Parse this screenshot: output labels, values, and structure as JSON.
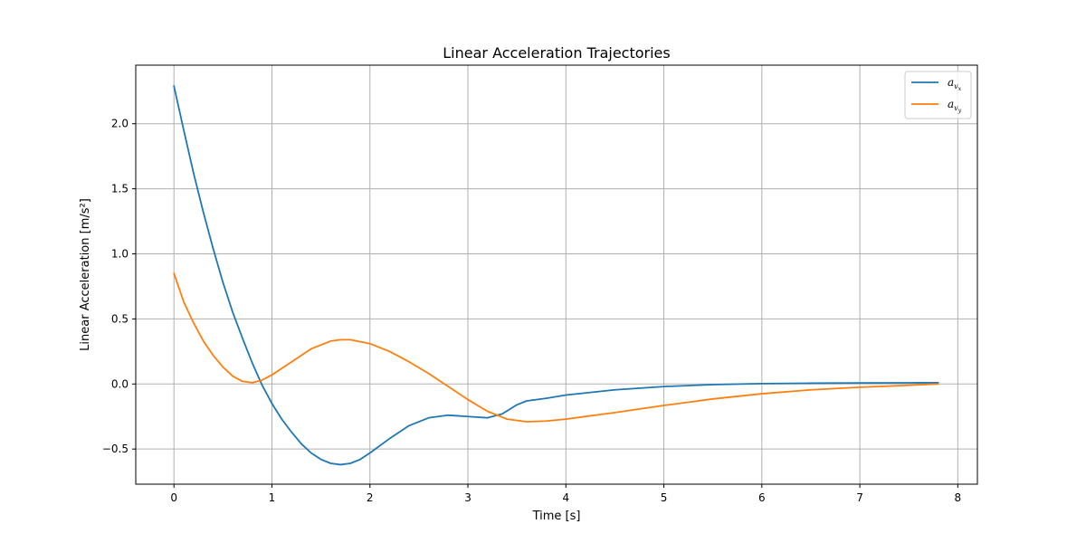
{
  "chart_data": {
    "type": "line",
    "title": "Linear Acceleration Trajectories",
    "xlabel": "Time [s]",
    "ylabel": "Linear Acceleration [m/s²]",
    "xlim": [
      -0.39,
      8.2
    ],
    "ylim": [
      -0.77,
      2.45
    ],
    "xticks": [
      0,
      1,
      2,
      3,
      4,
      5,
      6,
      7,
      8
    ],
    "xtick_labels": [
      "0",
      "1",
      "2",
      "3",
      "4",
      "5",
      "6",
      "7",
      "8"
    ],
    "yticks": [
      -0.5,
      0.0,
      0.5,
      1.0,
      1.5,
      2.0
    ],
    "ytick_labels": [
      "−0.5",
      "0.0",
      "0.5",
      "1.0",
      "1.5",
      "2.0"
    ],
    "grid": true,
    "legend_position": "upper right",
    "series": [
      {
        "name": "a_{v_x}",
        "legend_base": "a",
        "legend_sub": "v",
        "legend_subsub": "x",
        "color": "#1f77b4",
        "x": [
          0,
          0.1,
          0.2,
          0.3,
          0.4,
          0.5,
          0.6,
          0.7,
          0.8,
          0.9,
          1.0,
          1.1,
          1.2,
          1.3,
          1.4,
          1.5,
          1.6,
          1.7,
          1.8,
          1.9,
          2.0,
          2.2,
          2.4,
          2.6,
          2.8,
          3.0,
          3.2,
          3.35,
          3.5,
          3.6,
          3.8,
          4.0,
          4.5,
          5.0,
          5.5,
          6.0,
          6.5,
          7.0,
          7.5,
          7.8
        ],
        "y": [
          2.29,
          1.95,
          1.62,
          1.32,
          1.04,
          0.78,
          0.55,
          0.35,
          0.16,
          -0.01,
          -0.15,
          -0.27,
          -0.37,
          -0.46,
          -0.53,
          -0.58,
          -0.61,
          -0.62,
          -0.61,
          -0.58,
          -0.53,
          -0.42,
          -0.32,
          -0.26,
          -0.24,
          -0.25,
          -0.26,
          -0.23,
          -0.16,
          -0.13,
          -0.11,
          -0.085,
          -0.045,
          -0.02,
          -0.005,
          0.003,
          0.006,
          0.008,
          0.009,
          0.01
        ]
      },
      {
        "name": "a_{v_y}",
        "legend_base": "a",
        "legend_sub": "v",
        "legend_subsub": "y",
        "color": "#ff7f0e",
        "x": [
          0,
          0.1,
          0.2,
          0.3,
          0.4,
          0.5,
          0.6,
          0.7,
          0.8,
          0.9,
          1.0,
          1.2,
          1.4,
          1.6,
          1.7,
          1.8,
          2.0,
          2.2,
          2.4,
          2.6,
          2.8,
          3.0,
          3.2,
          3.4,
          3.6,
          3.8,
          4.0,
          4.5,
          5.0,
          5.5,
          6.0,
          6.5,
          7.0,
          7.5,
          7.8
        ],
        "y": [
          0.85,
          0.63,
          0.47,
          0.33,
          0.22,
          0.13,
          0.06,
          0.02,
          0.01,
          0.03,
          0.07,
          0.17,
          0.27,
          0.33,
          0.34,
          0.34,
          0.31,
          0.25,
          0.17,
          0.08,
          -0.02,
          -0.12,
          -0.21,
          -0.27,
          -0.29,
          -0.285,
          -0.27,
          -0.22,
          -0.165,
          -0.115,
          -0.075,
          -0.045,
          -0.025,
          -0.01,
          0.0
        ]
      }
    ]
  }
}
